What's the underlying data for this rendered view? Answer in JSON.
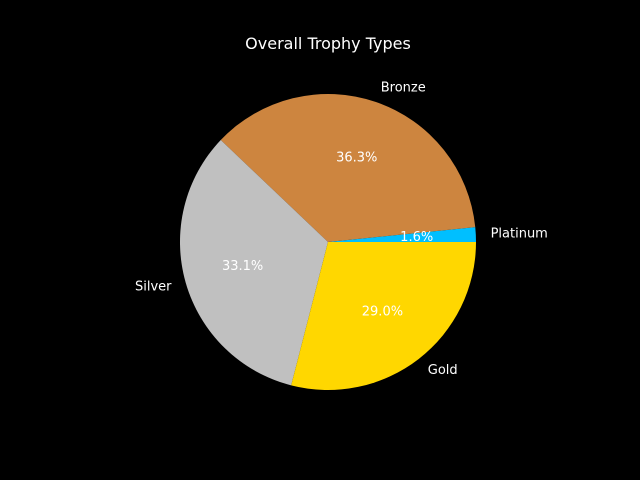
{
  "chart_data": {
    "type": "pie",
    "title": "Overall Trophy Types",
    "categories": [
      "Platinum",
      "Bronze",
      "Silver",
      "Gold"
    ],
    "values": [
      1.6,
      36.3,
      33.1,
      29.0
    ],
    "percent_labels": [
      "1.6%",
      "36.3%",
      "33.1%",
      "29.0%"
    ],
    "colors": [
      "#00bfff",
      "#cd853f",
      "#c0c0c0",
      "#ffd700"
    ],
    "start_angle_deg": 0,
    "direction": "counterclockwise",
    "legend": "none",
    "background": "#000000",
    "text_color": "#ffffff"
  }
}
